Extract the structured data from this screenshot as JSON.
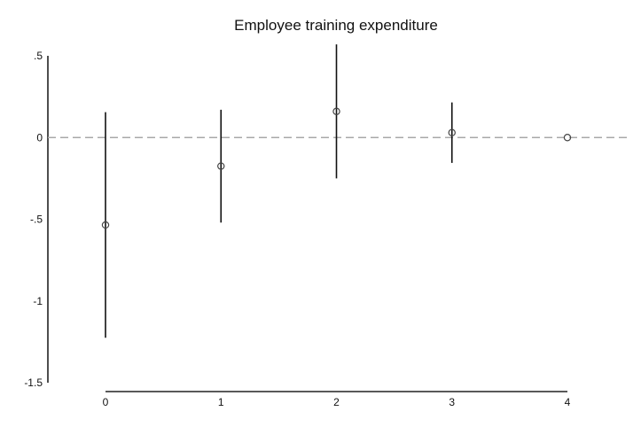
{
  "chart_data": {
    "type": "scatter",
    "title": "Employee training expenditure",
    "xlabel": "",
    "ylabel": "",
    "x": [
      0,
      1,
      2,
      3,
      4
    ],
    "xlim": [
      0,
      4
    ],
    "ylim": [
      -1.5,
      0.5
    ],
    "x_ticks": [
      "0",
      "1",
      "2",
      "3",
      "4"
    ],
    "y_ticks": [
      {
        "value": 0.5,
        "label": ".5"
      },
      {
        "value": 0,
        "label": "0"
      },
      {
        "value": -0.5,
        "label": "-.5"
      },
      {
        "value": -1,
        "label": "-1"
      },
      {
        "value": -1.5,
        "label": "-1.5"
      }
    ],
    "reference_line": {
      "y": 0,
      "style": "dashed",
      "color": "#a8a8a8"
    },
    "series": [
      {
        "estimate": [
          -0.535,
          -0.175,
          0.16,
          0.03,
          0.0
        ],
        "ci_low": [
          -1.225,
          -0.52,
          -0.25,
          -0.155,
          null
        ],
        "ci_high": [
          0.155,
          0.17,
          0.57,
          0.215,
          null
        ]
      }
    ],
    "grid": false,
    "legend": "none"
  }
}
